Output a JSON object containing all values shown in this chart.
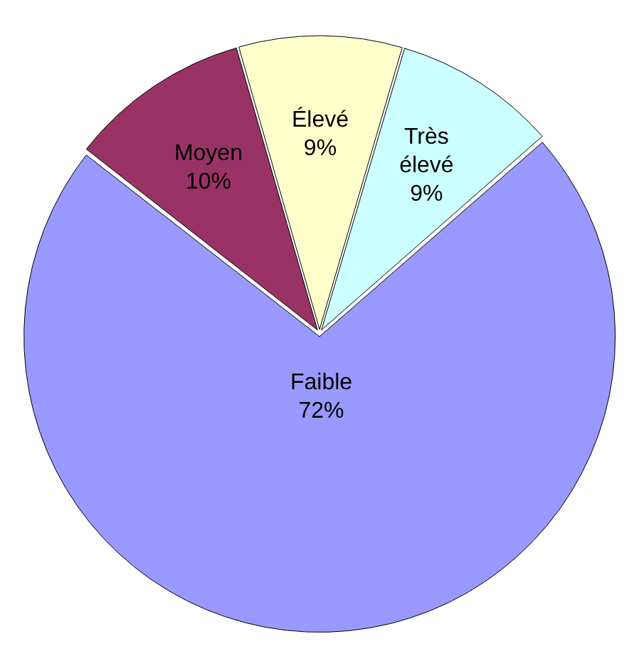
{
  "chart_data": {
    "type": "pie",
    "categories": [
      "Élevé",
      "Très élevé",
      "Faible",
      "Moyen"
    ],
    "values": [
      9,
      9,
      72,
      10
    ],
    "value_labels": [
      "9%",
      "9%",
      "72%",
      "10%"
    ],
    "colors": [
      "#ffffcc",
      "#ccffff",
      "#9999ff",
      "#993366"
    ],
    "legend": false
  }
}
